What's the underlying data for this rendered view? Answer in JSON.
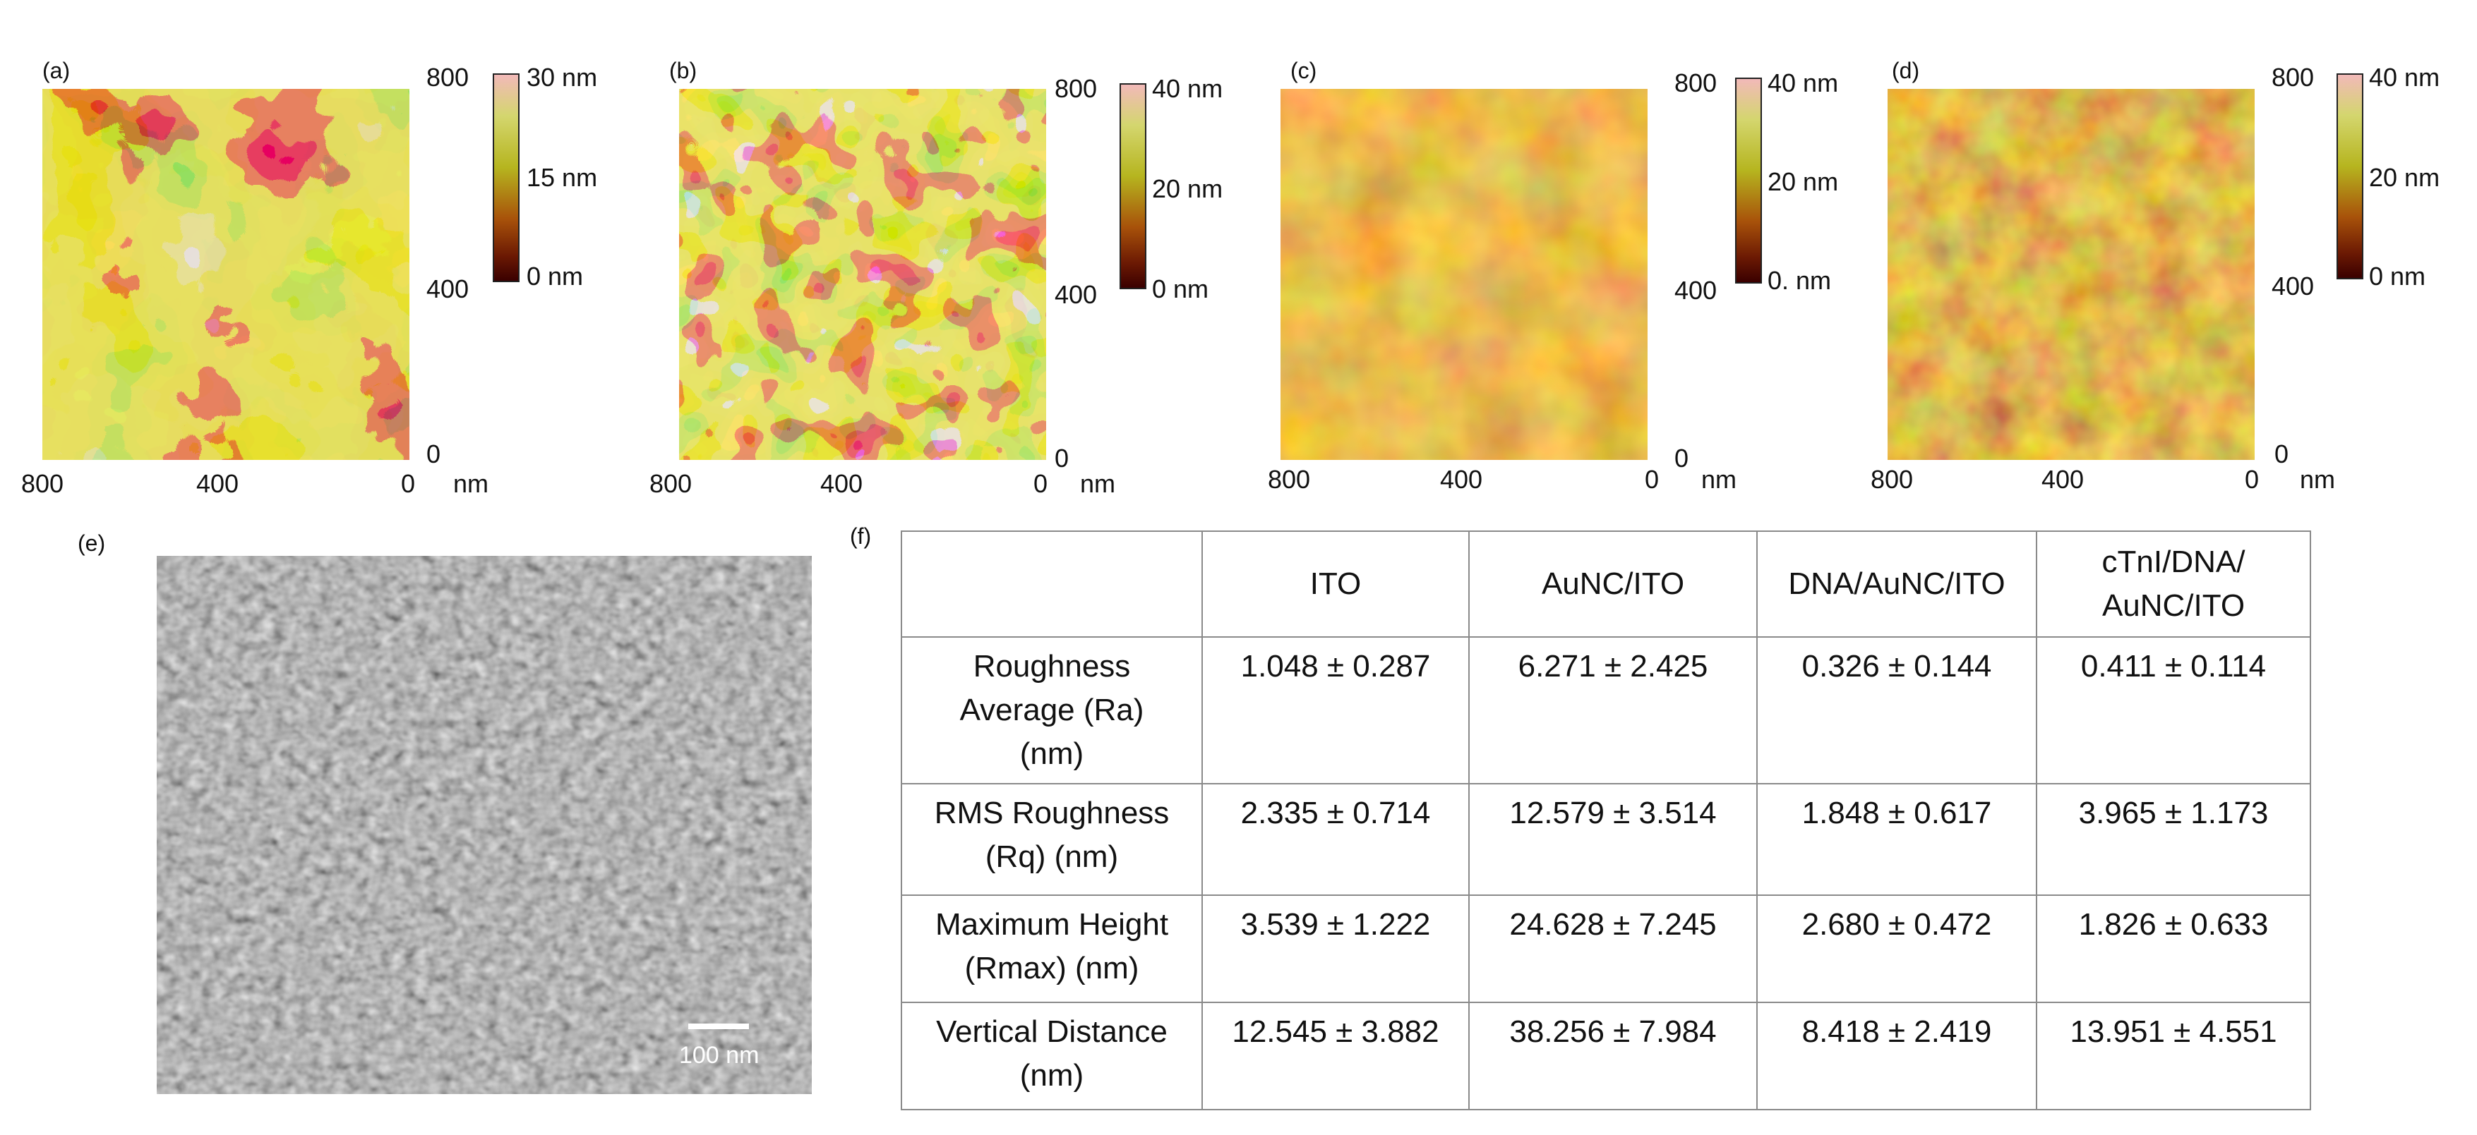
{
  "panels": {
    "a": {
      "label": "(a)",
      "cbar_max": "30 nm",
      "cbar_mid": "15 nm",
      "cbar_min": "0 nm"
    },
    "b": {
      "label": "(b)",
      "cbar_max": "40 nm",
      "cbar_mid": "20 nm",
      "cbar_min": "0 nm"
    },
    "c": {
      "label": "(c)",
      "cbar_max": "40 nm",
      "cbar_mid": "20 nm",
      "cbar_min": "0. nm"
    },
    "d": {
      "label": "(d)",
      "cbar_max": "40 nm",
      "cbar_mid": "20 nm",
      "cbar_min": "0 nm"
    },
    "e": {
      "label": "(e)",
      "scale_bar": "100 nm"
    },
    "f": {
      "label": "(f)"
    }
  },
  "axis": {
    "x_left": "800",
    "x_mid": "400",
    "x_right": "0",
    "unit": "nm",
    "y_top": "800",
    "y_mid": "400",
    "y_bottom": "0"
  },
  "colors": {
    "afm_dark": "#3a0000",
    "afm_mid": "#a8520a",
    "afm_yellow": "#c9c32a",
    "afm_pink": "#f2b9b9",
    "sem_gray": "#6f6f6f"
  },
  "table": {
    "headers": [
      "",
      "ITO",
      "AuNC/ITO",
      "DNA/AuNC/ITO",
      "cTnI/DNA/\nAuNC/ITO"
    ],
    "rows": [
      {
        "label": "Roughness\nAverage (Ra)\n(nm)",
        "values": [
          "1.048 ± 0.287",
          "6.271 ± 2.425",
          "0.326 ± 0.144",
          "0.411 ± 0.114"
        ]
      },
      {
        "label": "RMS Roughness\n(Rq) (nm)",
        "values": [
          "2.335 ± 0.714",
          "12.579 ± 3.514",
          "1.848 ± 0.617",
          "3.965 ± 1.173"
        ]
      },
      {
        "label": "Maximum Height\n(Rmax) (nm)",
        "values": [
          "3.539 ± 1.222",
          "24.628 ± 7.245",
          "2.680 ± 0.472",
          "1.826 ± 0.633"
        ]
      },
      {
        "label": "Vertical Distance\n(nm)",
        "values": [
          "12.545 ± 3.882",
          "38.256 ± 7.984",
          "8.418 ± 2.419",
          "13.951 ± 4.551"
        ]
      }
    ]
  }
}
